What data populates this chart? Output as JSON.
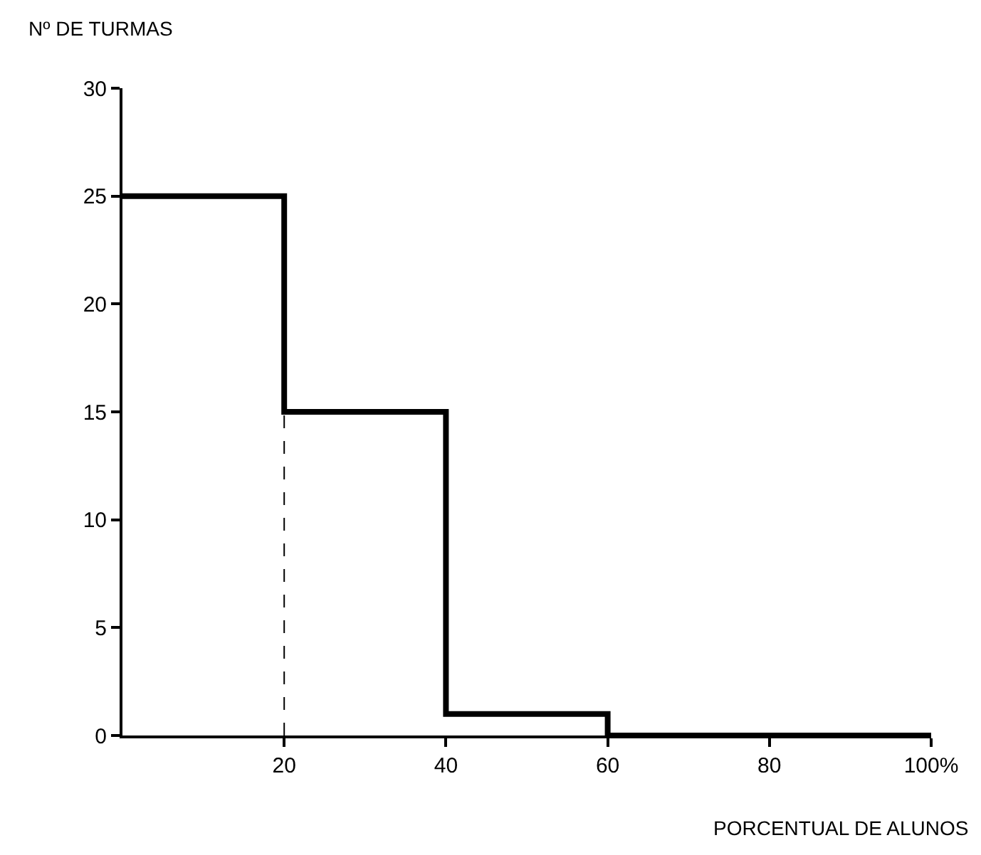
{
  "chart_data": {
    "type": "histogram",
    "xlabel": "PORCENTUAL DE ALUNOS",
    "ylabel": "Nº DE TURMAS",
    "bins": [
      0,
      20,
      40,
      60,
      100
    ],
    "values": [
      25,
      15,
      1,
      0
    ],
    "color": "#000000",
    "xlim": [
      0,
      100
    ],
    "xticks": [
      20,
      40,
      60,
      80,
      {
        "value": 100,
        "label": "100%"
      }
    ],
    "ylim": [
      0,
      30
    ],
    "yticks": [
      0,
      5,
      10,
      15,
      20,
      25,
      30
    ],
    "ref_lines": [
      {
        "axis": "x",
        "value": 20,
        "line_style": "dashed",
        "color": "#000000"
      }
    ]
  }
}
